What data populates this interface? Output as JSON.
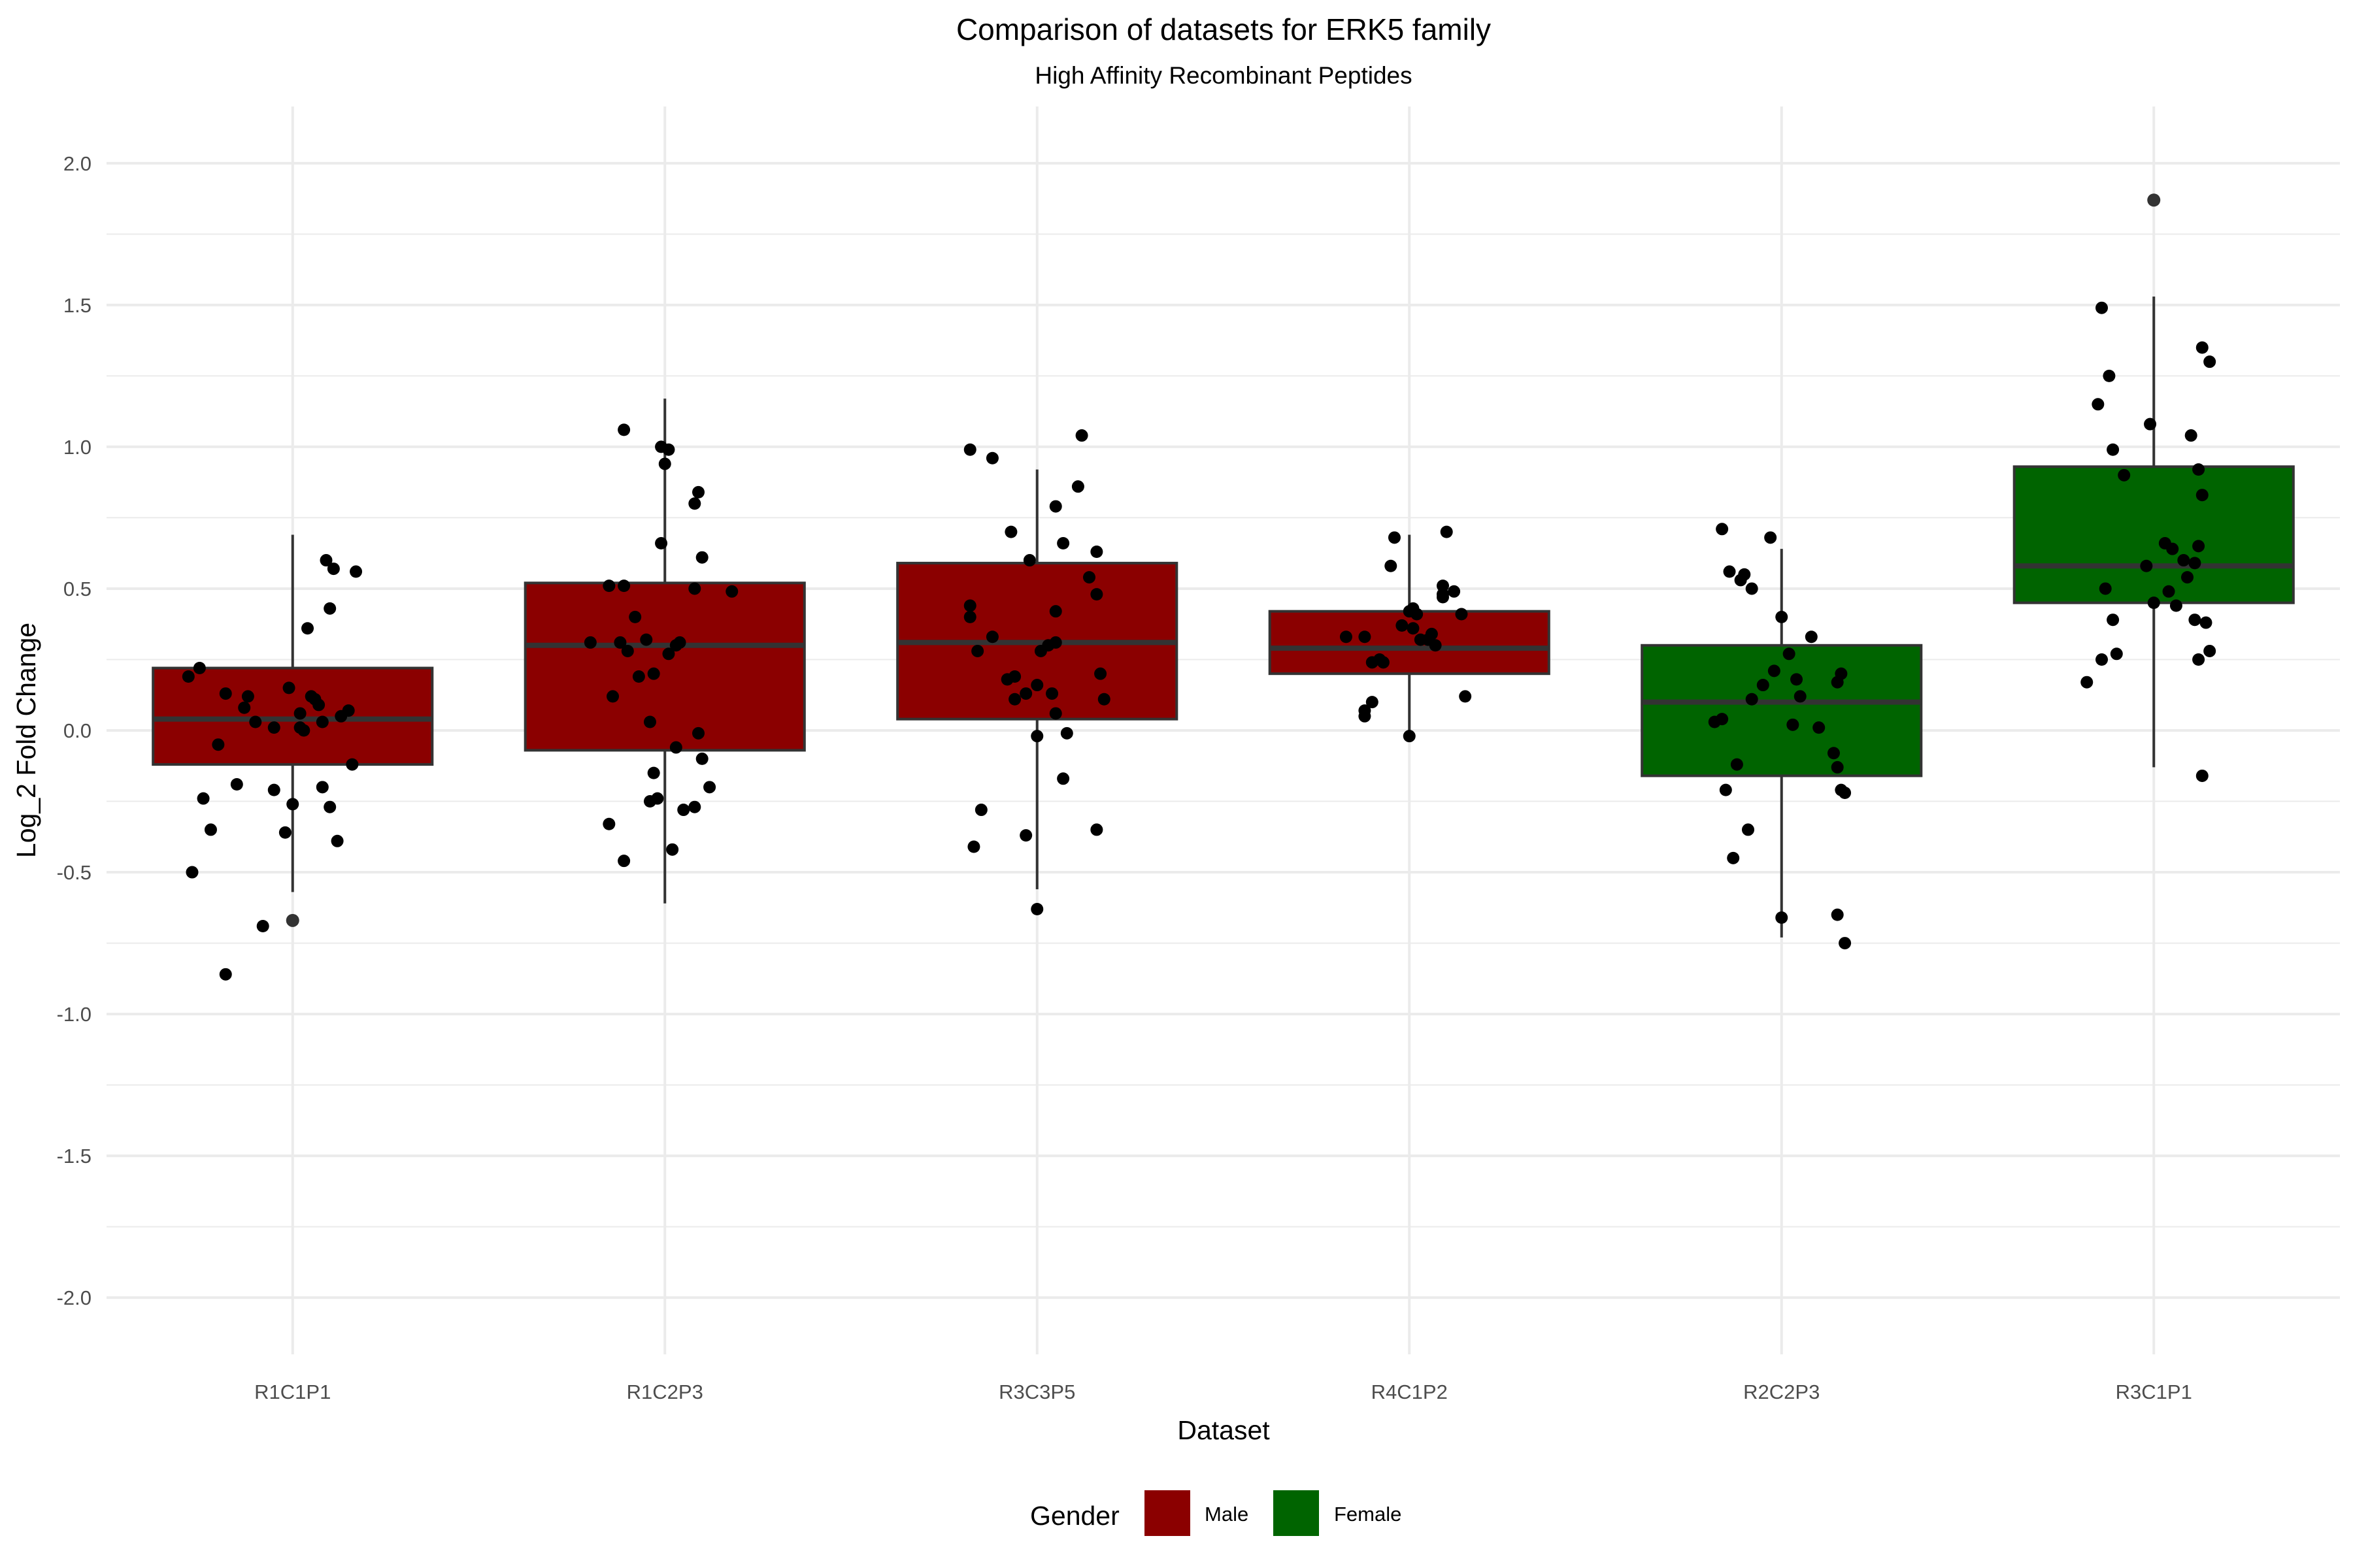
{
  "chart_data": {
    "type": "box",
    "title": "Comparison of datasets for ERK5 family",
    "subtitle": "High Affinity Recombinant Peptides",
    "xlabel": "Dataset",
    "ylabel": "Log_2 Fold Change",
    "ylim": [
      -2.2,
      2.2
    ],
    "y_ticks": [
      "-2.0",
      "-1.5",
      "-1.0",
      "-0.5",
      "0.0",
      "0.5",
      "1.0",
      "1.5",
      "2.0"
    ],
    "grid": true,
    "legend": {
      "title": "Gender",
      "position": "bottom",
      "entries": [
        {
          "label": "Male",
          "color": "#8b0000"
        },
        {
          "label": "Female",
          "color": "#006400"
        }
      ]
    },
    "categories": [
      "R1C1P1",
      "R1C2P3",
      "R3C3P5",
      "R4C1P2",
      "R2C2P3",
      "R3C1P1"
    ],
    "boxes": [
      {
        "category": "R1C1P1",
        "gender": "Male",
        "lower_whisker": -0.57,
        "q1": -0.12,
        "median": 0.04,
        "q3": 0.22,
        "upper_whisker": 0.69,
        "outliers": [
          -0.67
        ],
        "points": [
          [
            -0.28,
            0.19
          ],
          [
            -0.25,
            0.22
          ],
          [
            -0.18,
            0.13
          ],
          [
            -0.15,
            -0.19
          ],
          [
            -0.13,
            0.08
          ],
          [
            -0.1,
            0.03
          ],
          [
            -0.05,
            0.01
          ],
          [
            0.02,
            0.06
          ],
          [
            0.05,
            0.12
          ],
          [
            0.08,
            0.03
          ],
          [
            0.1,
            0.43
          ],
          [
            0.13,
            0.05
          ],
          [
            0.15,
            0.07
          ],
          [
            0.17,
            0.56
          ],
          [
            0.09,
            0.6
          ],
          [
            0.11,
            0.57
          ],
          [
            -0.2,
            -0.05
          ],
          [
            -0.22,
            -0.35
          ],
          [
            -0.24,
            -0.24
          ],
          [
            -0.27,
            -0.5
          ],
          [
            -0.05,
            -0.21
          ],
          [
            0.0,
            -0.26
          ],
          [
            0.08,
            -0.2
          ],
          [
            0.1,
            -0.27
          ],
          [
            0.12,
            -0.39
          ],
          [
            0.16,
            -0.12
          ],
          [
            -0.08,
            -0.69
          ],
          [
            -0.18,
            -0.86
          ],
          [
            0.03,
            0.0
          ],
          [
            0.06,
            0.11
          ],
          [
            -0.01,
            0.15
          ],
          [
            0.04,
            0.36
          ],
          [
            0.07,
            0.09
          ],
          [
            -0.12,
            0.12
          ],
          [
            0.02,
            0.01
          ],
          [
            -0.02,
            -0.36
          ]
        ]
      },
      {
        "category": "R1C2P3",
        "gender": "Male",
        "lower_whisker": -0.61,
        "q1": -0.07,
        "median": 0.3,
        "q3": 0.52,
        "upper_whisker": 1.17,
        "outliers": [],
        "points": [
          [
            -0.2,
            0.31
          ],
          [
            -0.15,
            0.51
          ],
          [
            -0.11,
            0.51
          ],
          [
            -0.12,
            0.31
          ],
          [
            -0.08,
            0.4
          ],
          [
            -0.05,
            0.32
          ],
          [
            -0.03,
            0.2
          ],
          [
            0.01,
            0.27
          ],
          [
            0.03,
            0.3
          ],
          [
            0.08,
            0.5
          ],
          [
            0.1,
            0.61
          ],
          [
            0.18,
            0.49
          ],
          [
            0.08,
            0.8
          ],
          [
            0.09,
            0.84
          ],
          [
            -0.01,
            1.0
          ],
          [
            0.01,
            0.99
          ],
          [
            -0.11,
            1.06
          ],
          [
            -0.01,
            0.66
          ],
          [
            0.0,
            0.94
          ],
          [
            -0.15,
            -0.33
          ],
          [
            -0.11,
            -0.46
          ],
          [
            0.02,
            -0.42
          ],
          [
            0.05,
            -0.28
          ],
          [
            0.08,
            -0.27
          ],
          [
            0.12,
            -0.2
          ],
          [
            0.1,
            -0.1
          ],
          [
            -0.04,
            -0.25
          ],
          [
            -0.02,
            -0.24
          ],
          [
            0.03,
            -0.06
          ],
          [
            0.09,
            -0.01
          ],
          [
            -0.04,
            0.03
          ],
          [
            -0.1,
            0.28
          ],
          [
            -0.07,
            0.19
          ],
          [
            -0.03,
            -0.15
          ],
          [
            -0.14,
            0.12
          ],
          [
            0.04,
            0.31
          ]
        ]
      },
      {
        "category": "R3C3P5",
        "gender": "Male",
        "lower_whisker": -0.56,
        "q1": 0.04,
        "median": 0.31,
        "q3": 0.59,
        "upper_whisker": 0.92,
        "outliers": [],
        "points": [
          [
            -0.18,
            0.4
          ],
          [
            -0.18,
            0.44
          ],
          [
            -0.16,
            0.28
          ],
          [
            -0.12,
            0.33
          ],
          [
            -0.08,
            0.18
          ],
          [
            -0.06,
            0.11
          ],
          [
            -0.02,
            0.6
          ],
          [
            -0.07,
            0.7
          ],
          [
            0.05,
            0.79
          ],
          [
            0.11,
            0.86
          ],
          [
            0.16,
            0.63
          ],
          [
            0.14,
            0.54
          ],
          [
            0.16,
            0.48
          ],
          [
            0.17,
            0.2
          ],
          [
            0.18,
            0.11
          ],
          [
            0.05,
            0.31
          ],
          [
            0.04,
            0.13
          ],
          [
            0.0,
            0.16
          ],
          [
            -0.03,
            0.13
          ],
          [
            0.05,
            0.42
          ],
          [
            0.07,
            0.66
          ],
          [
            -0.18,
            0.99
          ],
          [
            -0.12,
            0.96
          ],
          [
            0.12,
            1.04
          ],
          [
            -0.15,
            -0.28
          ],
          [
            -0.03,
            -0.37
          ],
          [
            0.07,
            -0.17
          ],
          [
            0.16,
            -0.35
          ],
          [
            0.0,
            -0.02
          ],
          [
            0.05,
            0.06
          ],
          [
            0.01,
            0.28
          ],
          [
            0.0,
            -0.63
          ],
          [
            -0.17,
            -0.41
          ],
          [
            0.08,
            -0.01
          ],
          [
            -0.06,
            0.19
          ],
          [
            0.03,
            0.3
          ]
        ]
      },
      {
        "category": "R4C1P2",
        "gender": "Male",
        "lower_whisker": -0.02,
        "q1": 0.2,
        "median": 0.29,
        "q3": 0.42,
        "upper_whisker": 0.69,
        "outliers": [],
        "points": [
          [
            -0.17,
            0.33
          ],
          [
            -0.12,
            0.33
          ],
          [
            -0.07,
            0.24
          ],
          [
            -0.05,
            0.58
          ],
          [
            -0.04,
            0.68
          ],
          [
            -0.02,
            0.37
          ],
          [
            0.0,
            0.42
          ],
          [
            0.01,
            0.36
          ],
          [
            0.03,
            0.32
          ],
          [
            0.06,
            0.34
          ],
          [
            0.07,
            0.3
          ],
          [
            0.09,
            0.51
          ],
          [
            0.09,
            0.48
          ],
          [
            0.12,
            0.49
          ],
          [
            0.14,
            0.41
          ],
          [
            0.1,
            0.7
          ],
          [
            0.09,
            0.47
          ],
          [
            0.01,
            0.43
          ],
          [
            -0.1,
            0.24
          ],
          [
            -0.12,
            0.07
          ],
          [
            -0.12,
            0.05
          ],
          [
            -0.1,
            0.1
          ],
          [
            0.0,
            -0.02
          ],
          [
            0.15,
            0.12
          ],
          [
            -0.08,
            0.25
          ],
          [
            0.05,
            0.32
          ],
          [
            0.02,
            0.41
          ]
        ]
      },
      {
        "category": "R2C2P3",
        "gender": "Female",
        "lower_whisker": -0.73,
        "q1": -0.16,
        "median": 0.1,
        "q3": 0.3,
        "upper_whisker": 0.64,
        "outliers": [],
        "points": [
          [
            -0.16,
            0.71
          ],
          [
            -0.14,
            0.56
          ],
          [
            -0.11,
            0.53
          ],
          [
            -0.08,
            0.5
          ],
          [
            -0.1,
            0.55
          ],
          [
            -0.02,
            0.21
          ],
          [
            -0.03,
            0.68
          ],
          [
            0.0,
            0.4
          ],
          [
            0.02,
            0.27
          ],
          [
            0.08,
            0.33
          ],
          [
            0.16,
            0.2
          ],
          [
            0.15,
            0.17
          ],
          [
            0.04,
            0.18
          ],
          [
            -0.08,
            0.11
          ],
          [
            -0.16,
            0.04
          ],
          [
            -0.18,
            0.03
          ],
          [
            0.03,
            0.02
          ],
          [
            -0.12,
            -0.12
          ],
          [
            -0.15,
            -0.21
          ],
          [
            -0.09,
            -0.35
          ],
          [
            -0.13,
            -0.45
          ],
          [
            0.14,
            -0.08
          ],
          [
            0.15,
            -0.13
          ],
          [
            0.16,
            -0.21
          ],
          [
            0.17,
            -0.22
          ],
          [
            0.15,
            -0.65
          ],
          [
            0.17,
            -0.75
          ],
          [
            0.0,
            -0.66
          ],
          [
            0.05,
            0.12
          ],
          [
            -0.05,
            0.16
          ],
          [
            0.1,
            0.01
          ]
        ]
      },
      {
        "category": "R3C1P1",
        "gender": "Female",
        "lower_whisker": -0.13,
        "q1": 0.45,
        "median": 0.58,
        "q3": 0.93,
        "upper_whisker": 1.53,
        "outliers": [
          1.87
        ],
        "points": [
          [
            -0.14,
            1.49
          ],
          [
            -0.12,
            1.25
          ],
          [
            -0.15,
            1.15
          ],
          [
            -0.11,
            0.99
          ],
          [
            -0.08,
            0.9
          ],
          [
            -0.01,
            1.08
          ],
          [
            0.1,
            1.04
          ],
          [
            0.13,
            1.35
          ],
          [
            0.15,
            1.3
          ],
          [
            0.12,
            0.92
          ],
          [
            0.13,
            0.83
          ],
          [
            0.03,
            0.66
          ],
          [
            0.05,
            0.64
          ],
          [
            0.11,
            0.59
          ],
          [
            0.12,
            0.65
          ],
          [
            -0.1,
            0.27
          ],
          [
            -0.14,
            0.25
          ],
          [
            -0.18,
            0.17
          ],
          [
            -0.11,
            0.39
          ],
          [
            -0.13,
            0.5
          ],
          [
            0.0,
            0.45
          ],
          [
            0.04,
            0.49
          ],
          [
            0.06,
            0.44
          ],
          [
            0.09,
            0.54
          ],
          [
            0.11,
            0.39
          ],
          [
            0.14,
            0.38
          ],
          [
            0.15,
            0.28
          ],
          [
            0.12,
            0.25
          ],
          [
            0.13,
            -0.16
          ],
          [
            0.08,
            0.6
          ],
          [
            -0.02,
            0.58
          ]
        ]
      }
    ]
  }
}
